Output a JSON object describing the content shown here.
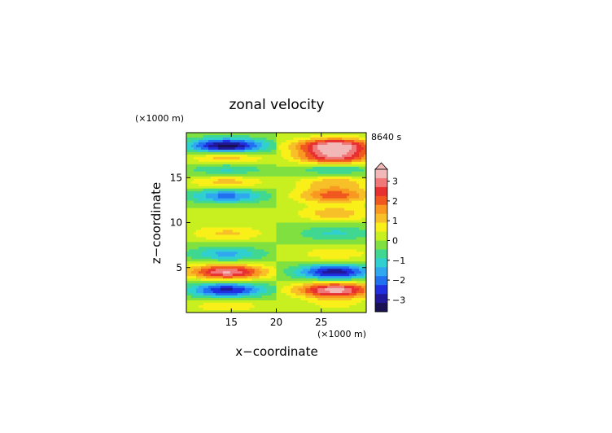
{
  "chart_data": {
    "type": "heatmap",
    "title": "zonal velocity",
    "xlabel": "x−coordinate",
    "ylabel": "z−coordinate",
    "x_unit": "(×1000 m)",
    "y_unit": "(×1000 m)",
    "time_label": "8640 s",
    "xlim": [
      10,
      30
    ],
    "ylim": [
      0,
      20
    ],
    "x_ticks": [
      15,
      20,
      25
    ],
    "y_ticks": [
      5,
      10,
      15
    ],
    "colorbar": {
      "ticks": [
        "3",
        "2",
        "1",
        "0",
        "−1",
        "−2",
        "−3"
      ],
      "tick_values": [
        3,
        2,
        1,
        0,
        -1,
        -2,
        -3
      ],
      "colors": [
        "#f2b8b8",
        "#f07878",
        "#e83030",
        "#f05820",
        "#f89820",
        "#f8c028",
        "#f8f018",
        "#c8f020",
        "#80e040",
        "#40d890",
        "#30d0d0",
        "#30a8f0",
        "#2070f0",
        "#2030e0",
        "#201898",
        "#181050"
      ],
      "levels_min": -3.6,
      "levels_max": 3.6
    },
    "bands": [
      {
        "z": 0.8,
        "left": 0.8,
        "right": 0.5
      },
      {
        "z": 2.5,
        "left": -2.8,
        "right": 3.4
      },
      {
        "z": 4.5,
        "left": 3.2,
        "right": -3.0
      },
      {
        "z": 6.5,
        "left": -1.5,
        "right": 0.8
      },
      {
        "z": 8.8,
        "left": 1.0,
        "right": -1.0
      },
      {
        "z": 11.0,
        "left": 0.4,
        "right": 1.2
      },
      {
        "z": 13.0,
        "left": -2.0,
        "right": 2.0
      },
      {
        "z": 14.5,
        "left": 1.2,
        "right": 1.2
      },
      {
        "z": 16.0,
        "left": -1.2,
        "right": -1.2
      },
      {
        "z": 17.2,
        "left": 1.5,
        "right": 2.8
      },
      {
        "z": 18.5,
        "left": -3.5,
        "right": 3.6
      }
    ]
  }
}
